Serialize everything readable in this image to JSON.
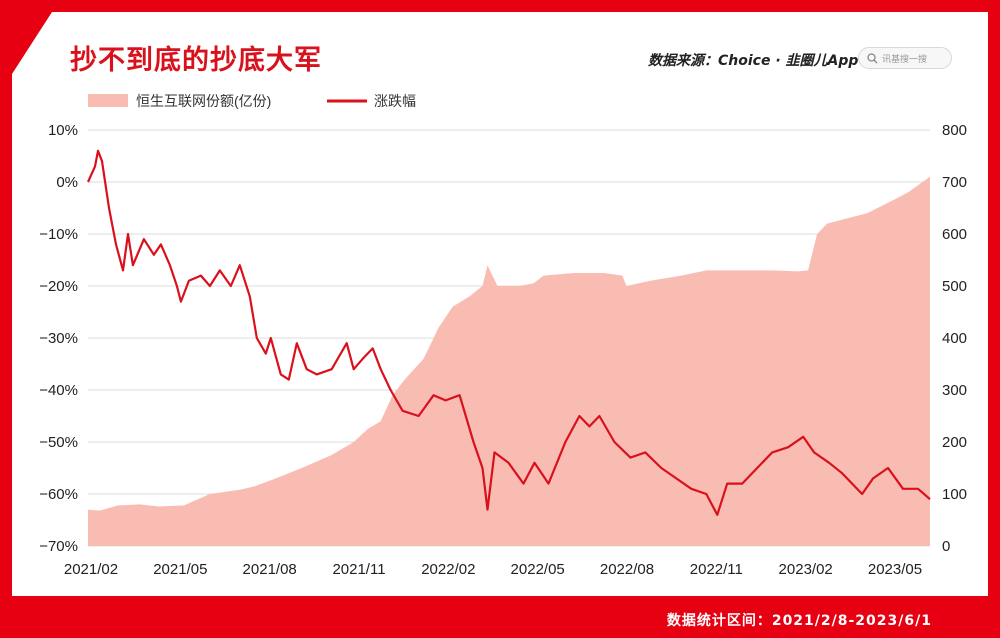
{
  "header": {
    "title": "抄不到底的抄底大军",
    "source": "数据来源：Choice · 韭圈儿App",
    "search_placeholder": "讯基搜一搜"
  },
  "footer": {
    "text": "数据统计区间：2021/2/8-2023/6/1"
  },
  "watermark": "韭圈儿",
  "colors": {
    "brand": "#e60012",
    "area": "#f9bcb3",
    "line": "#d9111c"
  },
  "chart_data": {
    "type": "line",
    "x_ticks": [
      "2021/02",
      "2021/05",
      "2021/08",
      "2021/11",
      "2022/02",
      "2022/05",
      "2022/08",
      "2022/11",
      "2023/02",
      "2023/05"
    ],
    "y_left": {
      "ticks": [
        "10%",
        "0%",
        "−10%",
        "−20%",
        "−30%",
        "−40%",
        "−50%",
        "−60%",
        "−70%"
      ],
      "range": [
        -70,
        10
      ]
    },
    "y_right": {
      "ticks": [
        "800",
        "700",
        "600",
        "500",
        "400",
        "300",
        "200",
        "100",
        "0"
      ],
      "range": [
        0,
        800
      ]
    },
    "series": [
      {
        "name": "恒生互联网份额(亿份)",
        "type": "area",
        "axis": "right",
        "points": [
          [
            "2021-02-08",
            70
          ],
          [
            "2021-02-20",
            68
          ],
          [
            "2021-03-10",
            78
          ],
          [
            "2021-04-01",
            80
          ],
          [
            "2021-04-20",
            76
          ],
          [
            "2021-05-15",
            78
          ],
          [
            "2021-06-10",
            100
          ],
          [
            "2021-07-10",
            108
          ],
          [
            "2021-07-25",
            115
          ],
          [
            "2021-08-15",
            130
          ],
          [
            "2021-09-10",
            150
          ],
          [
            "2021-10-10",
            175
          ],
          [
            "2021-11-01",
            200
          ],
          [
            "2021-11-15",
            225
          ],
          [
            "2021-11-28",
            240
          ],
          [
            "2021-12-10",
            290
          ],
          [
            "2021-12-22",
            320
          ],
          [
            "2022-01-10",
            360
          ],
          [
            "2022-01-25",
            420
          ],
          [
            "2022-02-08",
            460
          ],
          [
            "2022-02-25",
            480
          ],
          [
            "2022-03-10",
            500
          ],
          [
            "2022-03-15",
            540
          ],
          [
            "2022-03-25",
            500
          ],
          [
            "2022-04-15",
            500
          ],
          [
            "2022-04-30",
            505
          ],
          [
            "2022-05-10",
            520
          ],
          [
            "2022-06-10",
            525
          ],
          [
            "2022-07-10",
            525
          ],
          [
            "2022-07-28",
            520
          ],
          [
            "2022-08-01",
            500
          ],
          [
            "2022-08-25",
            510
          ],
          [
            "2022-09-25",
            520
          ],
          [
            "2022-10-20",
            530
          ],
          [
            "2022-11-25",
            530
          ],
          [
            "2022-12-25",
            530
          ],
          [
            "2023-01-20",
            528
          ],
          [
            "2023-01-30",
            530
          ],
          [
            "2023-02-08",
            600
          ],
          [
            "2023-02-18",
            620
          ],
          [
            "2023-03-10",
            630
          ],
          [
            "2023-03-30",
            640
          ],
          [
            "2023-04-25",
            665
          ],
          [
            "2023-05-10",
            680
          ],
          [
            "2023-06-01",
            710
          ]
        ]
      },
      {
        "name": "涨跌幅",
        "type": "line",
        "axis": "left",
        "points": [
          [
            "2021-02-08",
            0
          ],
          [
            "2021-02-15",
            3
          ],
          [
            "2021-02-18",
            6
          ],
          [
            "2021-02-22",
            4
          ],
          [
            "2021-03-01",
            -5
          ],
          [
            "2021-03-08",
            -12
          ],
          [
            "2021-03-15",
            -17
          ],
          [
            "2021-03-20",
            -10
          ],
          [
            "2021-03-25",
            -16
          ],
          [
            "2021-04-05",
            -11
          ],
          [
            "2021-04-15",
            -14
          ],
          [
            "2021-04-22",
            -12
          ],
          [
            "2021-05-01",
            -16
          ],
          [
            "2021-05-08",
            -20
          ],
          [
            "2021-05-12",
            -23
          ],
          [
            "2021-05-20",
            -19
          ],
          [
            "2021-06-01",
            -18
          ],
          [
            "2021-06-10",
            -20
          ],
          [
            "2021-06-20",
            -17
          ],
          [
            "2021-07-01",
            -20
          ],
          [
            "2021-07-10",
            -16
          ],
          [
            "2021-07-20",
            -22
          ],
          [
            "2021-07-27",
            -30
          ],
          [
            "2021-08-05",
            -33
          ],
          [
            "2021-08-10",
            -30
          ],
          [
            "2021-08-20",
            -37
          ],
          [
            "2021-08-28",
            -38
          ],
          [
            "2021-09-05",
            -31
          ],
          [
            "2021-09-15",
            -36
          ],
          [
            "2021-09-25",
            -37
          ],
          [
            "2021-10-10",
            -36
          ],
          [
            "2021-10-25",
            -31
          ],
          [
            "2021-11-01",
            -36
          ],
          [
            "2021-11-10",
            -34
          ],
          [
            "2021-11-20",
            -32
          ],
          [
            "2021-11-28",
            -36
          ],
          [
            "2021-12-08",
            -40
          ],
          [
            "2021-12-20",
            -44
          ],
          [
            "2022-01-05",
            -45
          ],
          [
            "2022-01-20",
            -41
          ],
          [
            "2022-02-01",
            -42
          ],
          [
            "2022-02-15",
            -41
          ],
          [
            "2022-03-01",
            -50
          ],
          [
            "2022-03-10",
            -55
          ],
          [
            "2022-03-15",
            -63
          ],
          [
            "2022-03-22",
            -52
          ],
          [
            "2022-04-05",
            -54
          ],
          [
            "2022-04-20",
            -58
          ],
          [
            "2022-05-01",
            -54
          ],
          [
            "2022-05-15",
            -58
          ],
          [
            "2022-06-01",
            -50
          ],
          [
            "2022-06-15",
            -45
          ],
          [
            "2022-06-25",
            -47
          ],
          [
            "2022-07-05",
            -45
          ],
          [
            "2022-07-20",
            -50
          ],
          [
            "2022-08-05",
            -53
          ],
          [
            "2022-08-20",
            -52
          ],
          [
            "2022-09-05",
            -55
          ],
          [
            "2022-09-20",
            -57
          ],
          [
            "2022-10-05",
            -59
          ],
          [
            "2022-10-20",
            -60
          ],
          [
            "2022-10-31",
            -64
          ],
          [
            "2022-11-10",
            -58
          ],
          [
            "2022-11-25",
            -58
          ],
          [
            "2022-12-10",
            -55
          ],
          [
            "2022-12-25",
            -52
          ],
          [
            "2023-01-10",
            -51
          ],
          [
            "2023-01-25",
            -49
          ],
          [
            "2023-02-05",
            -52
          ],
          [
            "2023-02-20",
            -54
          ],
          [
            "2023-03-05",
            -56
          ],
          [
            "2023-03-15",
            -58
          ],
          [
            "2023-03-25",
            -60
          ],
          [
            "2023-04-05",
            -57
          ],
          [
            "2023-04-20",
            -55
          ],
          [
            "2023-05-05",
            -59
          ],
          [
            "2023-05-20",
            -59
          ],
          [
            "2023-06-01",
            -61
          ]
        ]
      }
    ],
    "legend_position": "top-left",
    "grid": true
  }
}
